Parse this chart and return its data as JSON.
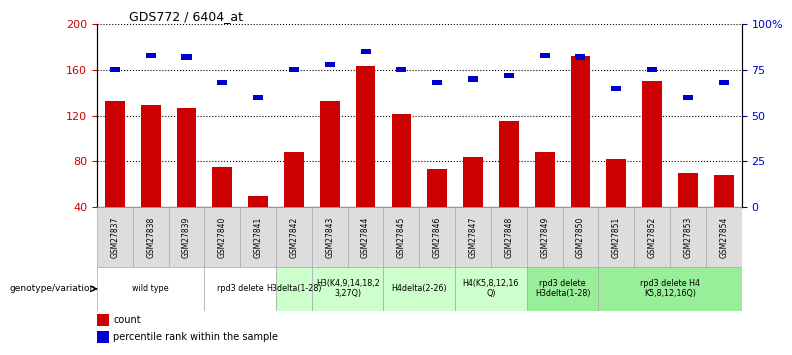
{
  "title": "GDS772 / 6404_at",
  "samples": [
    "GSM27837",
    "GSM27838",
    "GSM27839",
    "GSM27840",
    "GSM27841",
    "GSM27842",
    "GSM27843",
    "GSM27844",
    "GSM27845",
    "GSM27846",
    "GSM27847",
    "GSM27848",
    "GSM27849",
    "GSM27850",
    "GSM27851",
    "GSM27852",
    "GSM27853",
    "GSM27854"
  ],
  "counts": [
    133,
    129,
    127,
    75,
    50,
    88,
    133,
    163,
    121,
    73,
    84,
    115,
    88,
    172,
    82,
    150,
    70,
    68
  ],
  "percentile_ranks": [
    75,
    83,
    82,
    68,
    60,
    75,
    78,
    85,
    75,
    68,
    70,
    72,
    83,
    82,
    65,
    75,
    60,
    68
  ],
  "ymin": 40,
  "ymax": 200,
  "yticks": [
    40,
    80,
    120,
    160,
    200
  ],
  "right_tick_vals": [
    40,
    80,
    120,
    160,
    200
  ],
  "right_tick_labels": [
    "0",
    "25",
    "50",
    "75",
    "100%"
  ],
  "bar_color": "#cc0000",
  "percentile_color": "#0000cc",
  "groups": [
    {
      "label": "wild type",
      "start": 0,
      "end": 3,
      "color": "#ffffff"
    },
    {
      "label": "rpd3 delete",
      "start": 3,
      "end": 5,
      "color": "#ffffff"
    },
    {
      "label": "H3delta(1-28)",
      "start": 5,
      "end": 6,
      "color": "#ccffcc"
    },
    {
      "label": "H3(K4,9,14,18,2\n3,27Q)",
      "start": 6,
      "end": 8,
      "color": "#ccffcc"
    },
    {
      "label": "H4delta(2-26)",
      "start": 8,
      "end": 10,
      "color": "#ccffcc"
    },
    {
      "label": "H4(K5,8,12,16\nQ)",
      "start": 10,
      "end": 12,
      "color": "#ccffcc"
    },
    {
      "label": "rpd3 delete\nH3delta(1-28)",
      "start": 12,
      "end": 14,
      "color": "#99ee99"
    },
    {
      "label": "rpd3 delete H4\nK5,8,12,16Q)",
      "start": 14,
      "end": 18,
      "color": "#99ee99"
    }
  ],
  "genotype_label": "genotype/variation",
  "legend_count_label": "count",
  "legend_percentile_label": "percentile rank within the sample",
  "bar_width": 0.55,
  "pct_bar_width": 0.28,
  "pct_bar_height": 4.5
}
